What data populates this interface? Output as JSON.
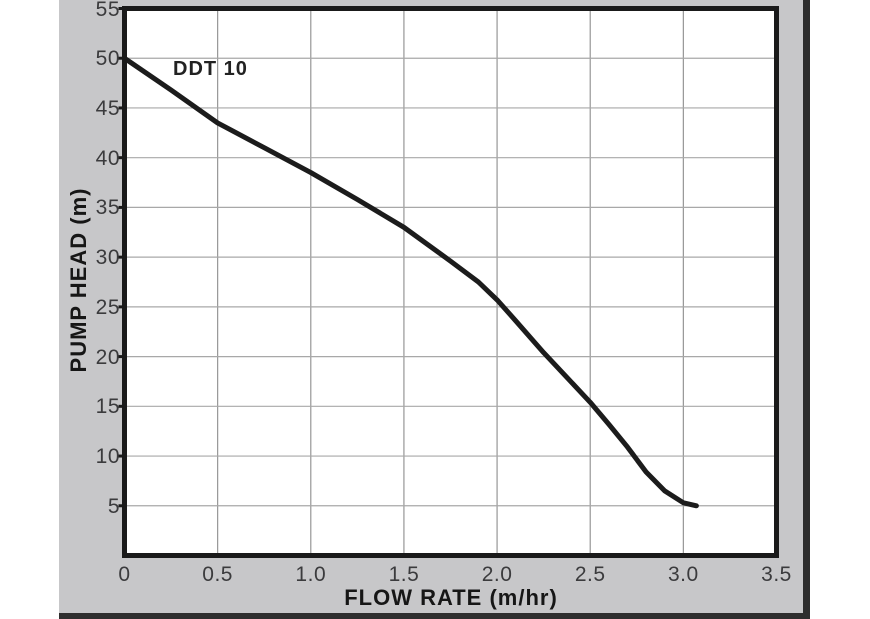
{
  "chart_data": {
    "type": "line",
    "title": "",
    "series_label": "DDT 10",
    "xlabel": "FLOW RATE (m/hr)",
    "ylabel": "PUMP HEAD (m)",
    "xlim": [
      0,
      3.5
    ],
    "ylim": [
      0,
      55
    ],
    "xticks": [
      0,
      0.5,
      1.0,
      1.5,
      2.0,
      2.5,
      3.0,
      3.5
    ],
    "xtick_labels": [
      "0",
      "0.5",
      "1.0",
      "1.5",
      "2.0",
      "2.5",
      "3.0",
      "3.5"
    ],
    "yticks": [
      5,
      10,
      15,
      20,
      25,
      30,
      35,
      40,
      45,
      50,
      55
    ],
    "grid": true,
    "legend_position": "none",
    "series": [
      {
        "name": "DDT 10",
        "points": [
          [
            0.0,
            50.0
          ],
          [
            0.25,
            46.8
          ],
          [
            0.5,
            43.5
          ],
          [
            0.75,
            41.0
          ],
          [
            1.0,
            38.5
          ],
          [
            1.25,
            35.8
          ],
          [
            1.5,
            33.0
          ],
          [
            1.75,
            29.6
          ],
          [
            1.9,
            27.5
          ],
          [
            2.0,
            25.7
          ],
          [
            2.1,
            23.6
          ],
          [
            2.25,
            20.4
          ],
          [
            2.4,
            17.4
          ],
          [
            2.5,
            15.4
          ],
          [
            2.6,
            13.2
          ],
          [
            2.7,
            10.9
          ],
          [
            2.8,
            8.4
          ],
          [
            2.9,
            6.5
          ],
          [
            3.0,
            5.3
          ],
          [
            3.07,
            5.0
          ]
        ]
      }
    ],
    "colors": {
      "panel_bg": "#c7c7c9",
      "panel_border": "#2e2e2e",
      "plot_bg": "#ffffff",
      "plot_border": "#1a1a1a",
      "grid_vertical": "#969696",
      "grid_horizontal": "#a8a8a8",
      "curve": "#1c1c1c",
      "tick_text": "#3b3b3d",
      "title_text": "#161616"
    }
  }
}
